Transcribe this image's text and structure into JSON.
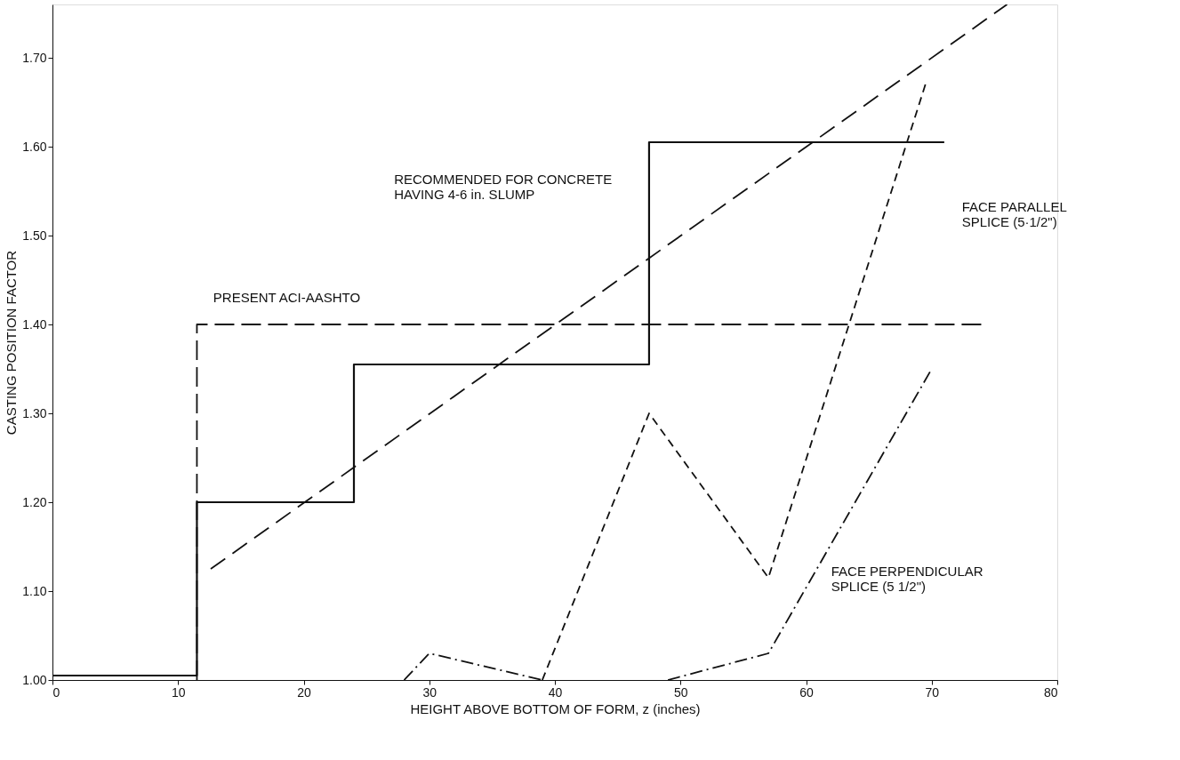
{
  "chart_data": {
    "type": "line",
    "xlabel": "HEIGHT ABOVE BOTTOM OF FORM,  z (inches)",
    "ylabel": "CASTING POSITION FACTOR",
    "xlim": [
      0,
      80
    ],
    "xticks": [
      0,
      10,
      20,
      30,
      40,
      50,
      60,
      70,
      80
    ],
    "ylim": [
      1.0,
      1.76
    ],
    "yticks": [
      {
        "value": 1.0,
        "label": "1.00"
      },
      {
        "value": 1.1,
        "label": "1.10"
      },
      {
        "value": 1.2,
        "label": "1.20"
      },
      {
        "value": 1.3,
        "label": "1.30"
      },
      {
        "value": 1.4,
        "label": "1.40"
      },
      {
        "value": 1.5,
        "label": "1.50"
      },
      {
        "value": 1.6,
        "label": "1.60"
      },
      {
        "value": 1.7,
        "label": "1.70"
      }
    ],
    "grid": false,
    "marker": "none",
    "series": [
      {
        "type": "step",
        "line_style": "solid",
        "color": "#111111",
        "x": [
          0,
          11.5,
          24,
          47.5,
          71
        ],
        "values": [
          1.005,
          1.2,
          1.355,
          1.605,
          1.605
        ]
      },
      {
        "type": "line",
        "line_style": "dashed",
        "color": "#111111",
        "x": [
          11.5,
          11.5,
          74
        ],
        "values": [
          1.0,
          1.4,
          1.4
        ]
      },
      {
        "type": "line",
        "line_style": "dashed",
        "color": "#111111",
        "x": [
          12.6,
          76
        ],
        "values": [
          1.125,
          1.76
        ]
      },
      {
        "type": "line",
        "line_style": "dashed",
        "color": "#111111",
        "x": [
          39,
          47.5,
          57,
          69.5
        ],
        "values": [
          1.0,
          1.3,
          1.115,
          1.67
        ]
      },
      {
        "type": "line",
        "line_style": "dotted",
        "color": "#111111",
        "x": [
          28,
          30,
          39,
          44,
          49,
          57,
          70
        ],
        "values": [
          1.0,
          1.03,
          1.0,
          null,
          1.0,
          1.03,
          1.35
        ]
      }
    ],
    "annotations": [
      "PRESENT ACI-AASHTO",
      "RECOMMENDED FOR CONCRETE\nHAVING 4-6 in. SLUMP",
      "FACE PARALLEL\nSPLICE (5·1/2\")",
      "FACE PERPENDICULAR\nSPLICE (5 1/2\")"
    ]
  }
}
